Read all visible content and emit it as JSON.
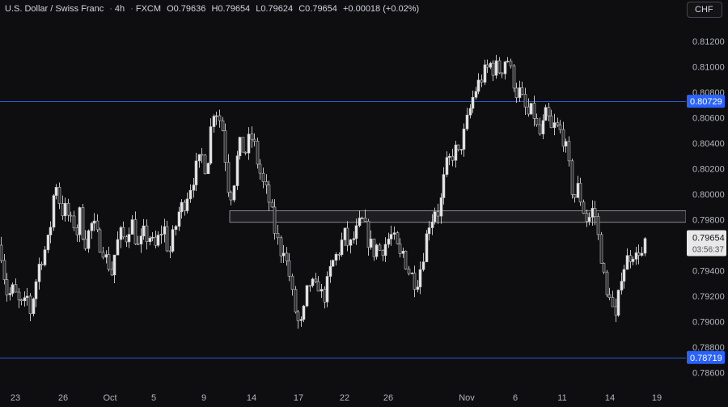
{
  "header": {
    "symbol": "U.S. Dollar / Swiss Franc",
    "interval": "4h",
    "source": "FXCM",
    "open": "O0.79636",
    "high": "H0.79654",
    "low": "L0.79624",
    "close": "C0.79654",
    "change": "+0.00018 (+0.02%)"
  },
  "currency_button": "CHF",
  "price_axis": {
    "ticks": [
      "0.81200",
      "0.81000",
      "0.80800",
      "0.80600",
      "0.80400",
      "0.80200",
      "0.80000",
      "0.79800",
      "0.79600",
      "0.79400",
      "0.79200",
      "0.79000",
      "0.78800",
      "0.78600"
    ],
    "level_labels": [
      "0.80729",
      "0.78719"
    ],
    "current_price": "0.79654",
    "countdown": "03:56:37"
  },
  "time_axis": [
    "23",
    "26",
    "Oct",
    "5",
    "9",
    "14",
    "17",
    "22",
    "26",
    "Nov",
    "6",
    "11",
    "14",
    "19"
  ],
  "colors": {
    "background": "#0e0e10",
    "candle_up": "#e8e8e8",
    "candle_down": "#2a2a2e",
    "candle_wick": "#bfbfbf",
    "level_line": "#2a5ad6",
    "level_label_bg": "#2962ff",
    "zone_fill": "#2b2b30",
    "zone_border": "#8a8a8f"
  },
  "chart_data": {
    "type": "candlestick",
    "symbol": "USD/CHF",
    "timeframe": "4h",
    "ylim": [
      0.7855,
      0.8133
    ],
    "horizontal_levels": [
      0.80729,
      0.78719
    ],
    "zone": [
      0.7978,
      0.7987
    ],
    "path": [
      [
        0,
        0.796
      ],
      [
        3,
        0.7945
      ],
      [
        6,
        0.793
      ],
      [
        10,
        0.7918
      ],
      [
        14,
        0.7926
      ],
      [
        18,
        0.7922
      ],
      [
        22,
        0.7915
      ],
      [
        26,
        0.7912
      ],
      [
        30,
        0.7913
      ],
      [
        34,
        0.792
      ],
      [
        37,
        0.7908
      ],
      [
        42,
        0.7925
      ],
      [
        48,
        0.7945
      ],
      [
        54,
        0.7955
      ],
      [
        58,
        0.796
      ],
      [
        62,
        0.7975
      ],
      [
        66,
        0.8
      ],
      [
        70,
        0.801
      ],
      [
        74,
        0.799
      ],
      [
        78,
        0.7985
      ],
      [
        82,
        0.799
      ],
      [
        86,
        0.7975
      ],
      [
        90,
        0.798
      ],
      [
        94,
        0.7968
      ],
      [
        98,
        0.7985
      ],
      [
        102,
        0.797
      ],
      [
        106,
        0.7962
      ],
      [
        110,
        0.7972
      ],
      [
        114,
        0.7978
      ],
      [
        118,
        0.797
      ],
      [
        122,
        0.7962
      ],
      [
        126,
        0.796
      ],
      [
        130,
        0.795
      ],
      [
        134,
        0.7945
      ],
      [
        138,
        0.7938
      ],
      [
        142,
        0.7955
      ],
      [
        146,
        0.7965
      ],
      [
        150,
        0.797
      ],
      [
        154,
        0.7962
      ],
      [
        158,
        0.7972
      ],
      [
        162,
        0.798
      ],
      [
        166,
        0.7968
      ],
      [
        170,
        0.7958
      ],
      [
        174,
        0.7962
      ],
      [
        178,
        0.797
      ],
      [
        182,
        0.7965
      ],
      [
        186,
        0.7968
      ],
      [
        190,
        0.7955
      ],
      [
        194,
        0.7962
      ],
      [
        198,
        0.797
      ],
      [
        202,
        0.7975
      ],
      [
        206,
        0.796
      ],
      [
        210,
        0.7955
      ],
      [
        214,
        0.7968
      ],
      [
        218,
        0.7978
      ],
      [
        222,
        0.799
      ],
      [
        226,
        0.799
      ],
      [
        230,
        0.7998
      ],
      [
        234,
        0.8005
      ],
      [
        238,
        0.8012
      ],
      [
        242,
        0.802
      ],
      [
        246,
        0.8025
      ],
      [
        250,
        0.803
      ],
      [
        254,
        0.802
      ],
      [
        258,
        0.8035
      ],
      [
        262,
        0.8065
      ],
      [
        266,
        0.8068
      ],
      [
        270,
        0.806
      ],
      [
        274,
        0.8055
      ],
      [
        278,
        0.803
      ],
      [
        282,
        0.8005
      ],
      [
        286,
        0.8
      ],
      [
        290,
        0.8015
      ],
      [
        294,
        0.8035
      ],
      [
        298,
        0.804
      ],
      [
        302,
        0.803
      ],
      [
        306,
        0.804
      ],
      [
        310,
        0.8045
      ],
      [
        314,
        0.8038
      ],
      [
        318,
        0.8025
      ],
      [
        322,
        0.8015
      ],
      [
        326,
        0.8005
      ],
      [
        330,
        0.8
      ],
      [
        334,
        0.799
      ],
      [
        338,
        0.7975
      ],
      [
        342,
        0.7965
      ],
      [
        346,
        0.7955
      ],
      [
        350,
        0.796
      ],
      [
        354,
        0.7945
      ],
      [
        358,
        0.7935
      ],
      [
        362,
        0.7915
      ],
      [
        366,
        0.7905
      ],
      [
        370,
        0.7895
      ],
      [
        374,
        0.79
      ],
      [
        378,
        0.792
      ],
      [
        382,
        0.793
      ],
      [
        386,
        0.7928
      ],
      [
        390,
        0.7925
      ],
      [
        394,
        0.793
      ],
      [
        398,
        0.7918
      ],
      [
        402,
        0.7922
      ],
      [
        406,
        0.7935
      ],
      [
        410,
        0.7945
      ],
      [
        414,
        0.795
      ],
      [
        418,
        0.7955
      ],
      [
        422,
        0.7962
      ],
      [
        426,
        0.7968
      ],
      [
        430,
        0.796
      ],
      [
        434,
        0.796
      ],
      [
        438,
        0.7968
      ],
      [
        442,
        0.7972
      ],
      [
        446,
        0.798
      ],
      [
        450,
        0.7975
      ],
      [
        454,
        0.7965
      ],
      [
        458,
        0.796
      ],
      [
        462,
        0.7955
      ],
      [
        466,
        0.796
      ],
      [
        470,
        0.7955
      ],
      [
        474,
        0.796
      ],
      [
        478,
        0.7962
      ],
      [
        482,
        0.7968
      ],
      [
        486,
        0.7965
      ],
      [
        490,
        0.7958
      ],
      [
        494,
        0.795
      ],
      [
        498,
        0.7955
      ],
      [
        502,
        0.7945
      ],
      [
        506,
        0.7938
      ],
      [
        510,
        0.7935
      ],
      [
        514,
        0.793
      ],
      [
        518,
        0.7938
      ],
      [
        522,
        0.795
      ],
      [
        526,
        0.7965
      ],
      [
        530,
        0.7978
      ],
      [
        534,
        0.7982
      ],
      [
        538,
        0.799
      ],
      [
        542,
        0.7985
      ],
      [
        546,
        0.8
      ],
      [
        550,
        0.802
      ],
      [
        554,
        0.8025
      ],
      [
        558,
        0.803
      ],
      [
        562,
        0.8035
      ],
      [
        566,
        0.803
      ],
      [
        570,
        0.804
      ],
      [
        574,
        0.8048
      ],
      [
        578,
        0.806
      ],
      [
        582,
        0.807
      ],
      [
        586,
        0.808
      ],
      [
        590,
        0.8085
      ],
      [
        594,
        0.809
      ],
      [
        598,
        0.8095
      ],
      [
        602,
        0.8098
      ],
      [
        606,
        0.8102
      ],
      [
        610,
        0.8098
      ],
      [
        614,
        0.81
      ],
      [
        618,
        0.8096
      ],
      [
        622,
        0.8102
      ],
      [
        626,
        0.811
      ],
      [
        630,
        0.8098
      ],
      [
        634,
        0.809
      ],
      [
        638,
        0.808
      ],
      [
        642,
        0.808
      ],
      [
        646,
        0.8072
      ],
      [
        650,
        0.8065
      ],
      [
        654,
        0.806
      ],
      [
        658,
        0.8068
      ],
      [
        662,
        0.8055
      ],
      [
        666,
        0.8045
      ],
      [
        670,
        0.8052
      ],
      [
        674,
        0.8062
      ],
      [
        678,
        0.8058
      ],
      [
        682,
        0.8048
      ],
      [
        686,
        0.8055
      ],
      [
        690,
        0.805
      ],
      [
        694,
        0.8048
      ],
      [
        698,
        0.804
      ],
      [
        702,
        0.8025
      ],
      [
        706,
        0.8005
      ],
      [
        710,
        0.7998
      ],
      [
        714,
        0.8005
      ],
      [
        718,
        0.7995
      ],
      [
        722,
        0.7985
      ],
      [
        726,
        0.7978
      ],
      [
        730,
        0.7985
      ],
      [
        734,
        0.799
      ],
      [
        738,
        0.797
      ],
      [
        742,
        0.7955
      ],
      [
        746,
        0.7935
      ],
      [
        750,
        0.7918
      ],
      [
        754,
        0.7925
      ],
      [
        758,
        0.7905
      ],
      [
        762,
        0.7898
      ],
      [
        766,
        0.7935
      ],
      [
        770,
        0.7942
      ],
      [
        774,
        0.7948
      ],
      [
        778,
        0.7952
      ],
      [
        782,
        0.7955
      ],
      [
        786,
        0.795
      ],
      [
        790,
        0.7958
      ],
      [
        794,
        0.795
      ],
      [
        798,
        0.7965
      ]
    ]
  }
}
